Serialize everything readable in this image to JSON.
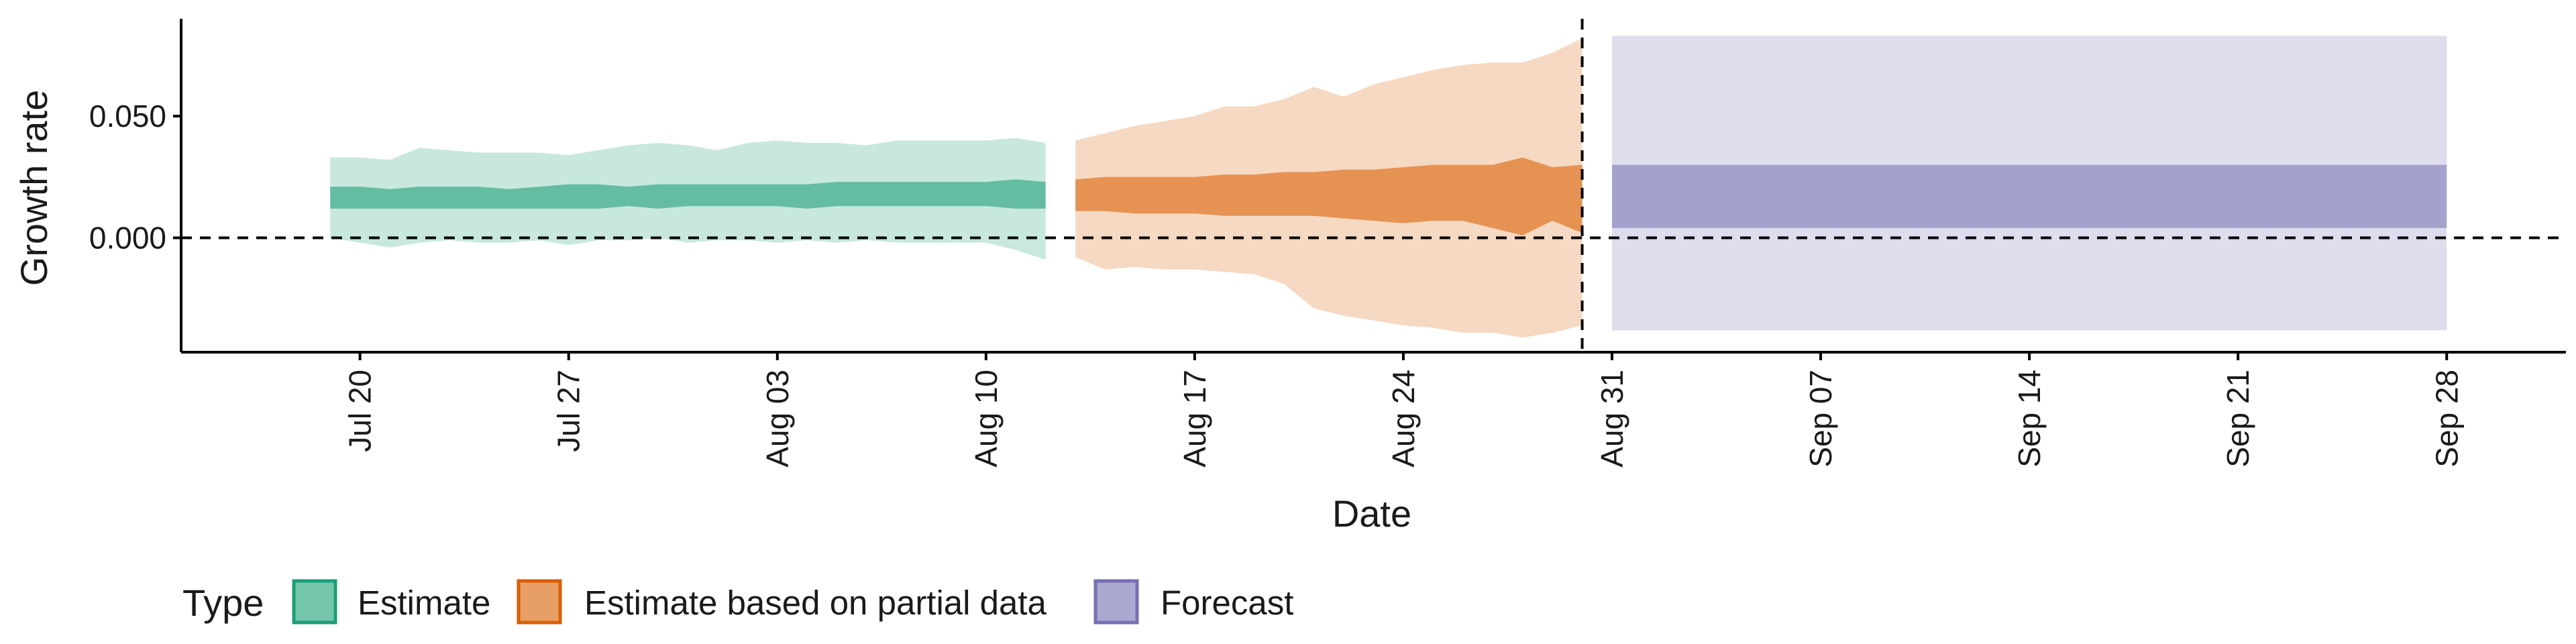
{
  "chart_data": {
    "type": "area",
    "xlabel": "Date",
    "ylabel": "Growth rate",
    "x_ticks": [
      "Jul 20",
      "Jul 27",
      "Aug 03",
      "Aug 10",
      "Aug 17",
      "Aug 24",
      "Aug 31",
      "Sep 07",
      "Sep 14",
      "Sep 21",
      "Sep 28"
    ],
    "y_ticks": [
      "0.000",
      "0.050"
    ],
    "ylim": [
      -0.047,
      0.09
    ],
    "xlim": [
      "2020-07-14",
      "2020-10-02"
    ],
    "reference_lines": {
      "horizontal_y": 0,
      "vertical_x": "2020-08-30"
    },
    "legend": {
      "title": "Type",
      "position": "bottom",
      "entries": [
        "Estimate",
        "Estimate based on partial data",
        "Forecast"
      ]
    },
    "colors": {
      "Estimate": "#1b9e77",
      "Estimate based on partial data": "#d95f02",
      "Forecast": "#7570b3"
    },
    "series": [
      {
        "name": "Estimate",
        "points": [
          {
            "x": "2020-07-19",
            "lo90": 0.0,
            "lo50": 0.012,
            "hi50": 0.021,
            "hi90": 0.033
          },
          {
            "x": "2020-07-20",
            "lo90": -0.002,
            "lo50": 0.012,
            "hi50": 0.021,
            "hi90": 0.033
          },
          {
            "x": "2020-07-21",
            "lo90": -0.004,
            "lo50": 0.012,
            "hi50": 0.02,
            "hi90": 0.032
          },
          {
            "x": "2020-07-22",
            "lo90": -0.002,
            "lo50": 0.012,
            "hi50": 0.021,
            "hi90": 0.037
          },
          {
            "x": "2020-07-23",
            "lo90": -0.001,
            "lo50": 0.012,
            "hi50": 0.021,
            "hi90": 0.036
          },
          {
            "x": "2020-07-24",
            "lo90": -0.002,
            "lo50": 0.012,
            "hi50": 0.021,
            "hi90": 0.035
          },
          {
            "x": "2020-07-25",
            "lo90": -0.002,
            "lo50": 0.012,
            "hi50": 0.02,
            "hi90": 0.035
          },
          {
            "x": "2020-07-26",
            "lo90": -0.001,
            "lo50": 0.012,
            "hi50": 0.021,
            "hi90": 0.035
          },
          {
            "x": "2020-07-27",
            "lo90": -0.003,
            "lo50": 0.012,
            "hi50": 0.022,
            "hi90": 0.034
          },
          {
            "x": "2020-07-28",
            "lo90": -0.001,
            "lo50": 0.012,
            "hi50": 0.022,
            "hi90": 0.036
          },
          {
            "x": "2020-07-29",
            "lo90": -0.001,
            "lo50": 0.013,
            "hi50": 0.021,
            "hi90": 0.038
          },
          {
            "x": "2020-07-30",
            "lo90": 0.0,
            "lo50": 0.012,
            "hi50": 0.022,
            "hi90": 0.039
          },
          {
            "x": "2020-07-31",
            "lo90": -0.002,
            "lo50": 0.013,
            "hi50": 0.022,
            "hi90": 0.038
          },
          {
            "x": "2020-08-01",
            "lo90": -0.001,
            "lo50": 0.013,
            "hi50": 0.022,
            "hi90": 0.036
          },
          {
            "x": "2020-08-02",
            "lo90": -0.001,
            "lo50": 0.013,
            "hi50": 0.022,
            "hi90": 0.039
          },
          {
            "x": "2020-08-03",
            "lo90": -0.002,
            "lo50": 0.013,
            "hi50": 0.022,
            "hi90": 0.04
          },
          {
            "x": "2020-08-04",
            "lo90": -0.001,
            "lo50": 0.012,
            "hi50": 0.022,
            "hi90": 0.039
          },
          {
            "x": "2020-08-05",
            "lo90": -0.002,
            "lo50": 0.013,
            "hi50": 0.023,
            "hi90": 0.039
          },
          {
            "x": "2020-08-06",
            "lo90": -0.001,
            "lo50": 0.013,
            "hi50": 0.023,
            "hi90": 0.038
          },
          {
            "x": "2020-08-07",
            "lo90": -0.002,
            "lo50": 0.013,
            "hi50": 0.023,
            "hi90": 0.04
          },
          {
            "x": "2020-08-08",
            "lo90": -0.002,
            "lo50": 0.013,
            "hi50": 0.023,
            "hi90": 0.04
          },
          {
            "x": "2020-08-09",
            "lo90": -0.002,
            "lo50": 0.013,
            "hi50": 0.023,
            "hi90": 0.04
          },
          {
            "x": "2020-08-10",
            "lo90": -0.002,
            "lo50": 0.013,
            "hi50": 0.023,
            "hi90": 0.04
          },
          {
            "x": "2020-08-11",
            "lo90": -0.005,
            "lo50": 0.012,
            "hi50": 0.024,
            "hi90": 0.041
          },
          {
            "x": "2020-08-12",
            "lo90": -0.009,
            "lo50": 0.012,
            "hi50": 0.023,
            "hi90": 0.039
          }
        ]
      },
      {
        "name": "Estimate based on partial data",
        "points": [
          {
            "x": "2020-08-13",
            "lo90": -0.008,
            "lo50": 0.011,
            "hi50": 0.024,
            "hi90": 0.04
          },
          {
            "x": "2020-08-14",
            "lo90": -0.013,
            "lo50": 0.011,
            "hi50": 0.025,
            "hi90": 0.043
          },
          {
            "x": "2020-08-15",
            "lo90": -0.012,
            "lo50": 0.01,
            "hi50": 0.025,
            "hi90": 0.046
          },
          {
            "x": "2020-08-16",
            "lo90": -0.013,
            "lo50": 0.01,
            "hi50": 0.025,
            "hi90": 0.048
          },
          {
            "x": "2020-08-17",
            "lo90": -0.013,
            "lo50": 0.01,
            "hi50": 0.025,
            "hi90": 0.05
          },
          {
            "x": "2020-08-18",
            "lo90": -0.014,
            "lo50": 0.009,
            "hi50": 0.026,
            "hi90": 0.054
          },
          {
            "x": "2020-08-19",
            "lo90": -0.015,
            "lo50": 0.009,
            "hi50": 0.026,
            "hi90": 0.054
          },
          {
            "x": "2020-08-20",
            "lo90": -0.019,
            "lo50": 0.009,
            "hi50": 0.027,
            "hi90": 0.057
          },
          {
            "x": "2020-08-21",
            "lo90": -0.029,
            "lo50": 0.009,
            "hi50": 0.027,
            "hi90": 0.062
          },
          {
            "x": "2020-08-22",
            "lo90": -0.032,
            "lo50": 0.008,
            "hi50": 0.028,
            "hi90": 0.058
          },
          {
            "x": "2020-08-23",
            "lo90": -0.034,
            "lo50": 0.007,
            "hi50": 0.028,
            "hi90": 0.063
          },
          {
            "x": "2020-08-24",
            "lo90": -0.036,
            "lo50": 0.006,
            "hi50": 0.029,
            "hi90": 0.066
          },
          {
            "x": "2020-08-25",
            "lo90": -0.037,
            "lo50": 0.007,
            "hi50": 0.03,
            "hi90": 0.069
          },
          {
            "x": "2020-08-26",
            "lo90": -0.039,
            "lo50": 0.007,
            "hi50": 0.03,
            "hi90": 0.071
          },
          {
            "x": "2020-08-27",
            "lo90": -0.039,
            "lo50": 0.004,
            "hi50": 0.03,
            "hi90": 0.072
          },
          {
            "x": "2020-08-28",
            "lo90": -0.041,
            "lo50": 0.001,
            "hi50": 0.033,
            "hi90": 0.072
          },
          {
            "x": "2020-08-29",
            "lo90": -0.039,
            "lo50": 0.007,
            "hi50": 0.029,
            "hi90": 0.076
          },
          {
            "x": "2020-08-30",
            "lo90": -0.036,
            "lo50": 0.002,
            "hi50": 0.03,
            "hi90": 0.082
          }
        ]
      },
      {
        "name": "Forecast",
        "points": [
          {
            "x": "2020-08-31",
            "lo90": -0.038,
            "lo50": 0.004,
            "hi50": 0.03,
            "hi90": 0.083
          },
          {
            "x": "2020-09-28",
            "lo90": -0.038,
            "lo50": 0.004,
            "hi50": 0.03,
            "hi90": 0.083
          }
        ]
      }
    ]
  }
}
